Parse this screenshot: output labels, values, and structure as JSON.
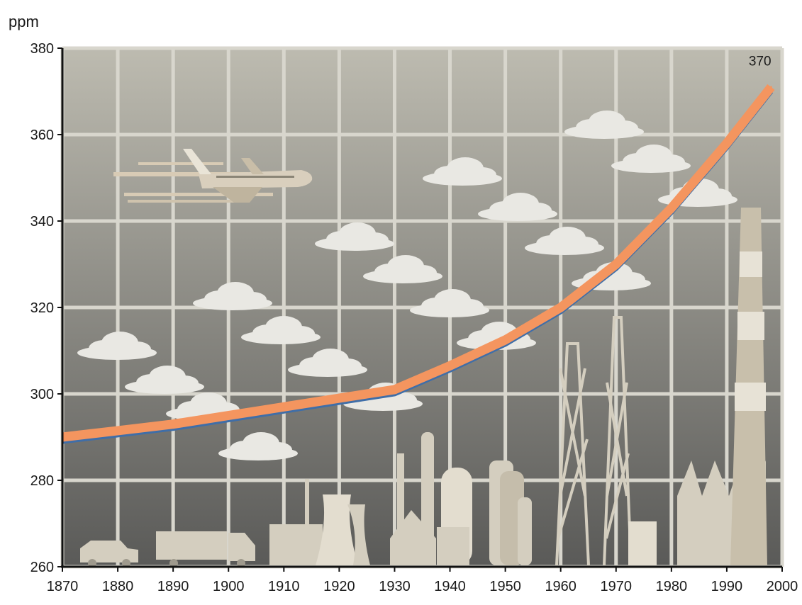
{
  "chart_data": {
    "type": "line",
    "title": "",
    "ylabel": "ppm",
    "xlabel": "",
    "xlim": [
      1870,
      2000
    ],
    "ylim": [
      260,
      380
    ],
    "x_ticks": [
      1870,
      1880,
      1890,
      1900,
      1910,
      1920,
      1930,
      1940,
      1950,
      1960,
      1970,
      1980,
      1990,
      2000
    ],
    "y_ticks": [
      260,
      280,
      300,
      320,
      340,
      360,
      380
    ],
    "grid": true,
    "series": [
      {
        "x": [
          1870,
          1880,
          1890,
          1900,
          1910,
          1920,
          1930,
          1940,
          1950,
          1960,
          1970,
          1980,
          1990,
          1998
        ],
        "y": [
          290,
          291.5,
          293,
          295,
          297,
          299,
          301,
          306.5,
          312.5,
          320,
          330,
          343,
          358,
          371
        ],
        "color": "#f4955f"
      }
    ],
    "annotations": [
      {
        "text": "370",
        "x": 1996,
        "y": 376
      }
    ],
    "colors": {
      "background_top": "#bdbbb0",
      "background_bottom": "#5a5a58",
      "grid": "#d8d6cd",
      "line_main": "#f4955f",
      "line_shadow": "#3f6ea8",
      "skyline": "#d4cebf",
      "cloud": "#e9e8e3"
    },
    "illustrations": [
      "airplane-icon",
      "cloud-icon",
      "car-icon",
      "truck-icon",
      "factory-icon",
      "cooling-tower-icon",
      "refinery-icon",
      "oil-derrick-icon",
      "chimney-icon"
    ]
  }
}
